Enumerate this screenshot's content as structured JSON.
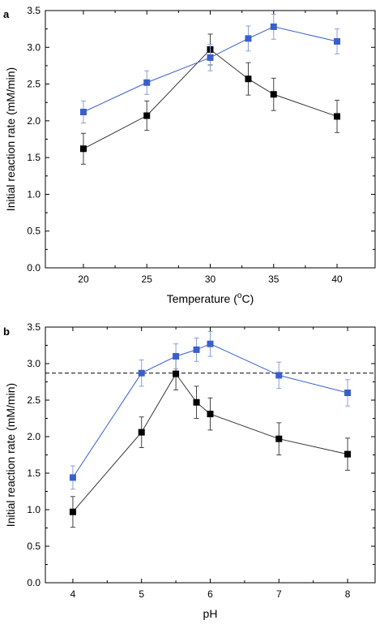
{
  "colors": {
    "black_series": "#000000",
    "blue_series": "#3a5fcd",
    "error_bar_blue": "#8a9fd8",
    "axis": "#000000"
  },
  "chart_data": [
    {
      "panel": "a",
      "type": "line",
      "xlabel": "Temperature (ºC)",
      "xlabel_main": "Temperature (",
      "xlabel_sup": "o",
      "xlabel_tail": "C)",
      "ylabel": "Initial reaction rate (mM/min)",
      "xlim": [
        17,
        43
      ],
      "ylim": [
        0,
        3.5
      ],
      "xticks": [
        20,
        25,
        30,
        35,
        40
      ],
      "xtick_labels": [
        "20",
        "25",
        "30",
        "35",
        "40"
      ],
      "yticks": [
        0,
        0.5,
        1.0,
        1.5,
        2.0,
        2.5,
        3.0,
        3.5
      ],
      "ytick_labels": [
        "0.0",
        "0.5",
        "1.0",
        "1.5",
        "2.0",
        "2.5",
        "3.0",
        "3.5"
      ],
      "series": [
        {
          "color": "#000000",
          "x": [
            20,
            25,
            30,
            33,
            35,
            40
          ],
          "y": [
            1.62,
            2.07,
            2.97,
            2.57,
            2.36,
            2.06
          ],
          "err": [
            0.21,
            0.2,
            0.21,
            0.22,
            0.22,
            0.22
          ]
        },
        {
          "color": "#3a5fcd",
          "x": [
            20,
            25,
            30,
            33,
            35,
            40
          ],
          "y": [
            2.12,
            2.52,
            2.86,
            3.12,
            3.28,
            3.08
          ],
          "err": [
            0.15,
            0.16,
            0.18,
            0.17,
            0.17,
            0.17
          ]
        }
      ],
      "hline": null
    },
    {
      "panel": "b",
      "type": "line",
      "xlabel": "pH",
      "xlabel_main": "pH",
      "xlabel_sup": "",
      "xlabel_tail": "",
      "ylabel": "Initial reaction rate (mM/min)",
      "xlim": [
        3.6,
        8.4
      ],
      "ylim": [
        0,
        3.5
      ],
      "xticks": [
        4,
        5,
        6,
        7,
        8
      ],
      "xtick_labels": [
        "4",
        "5",
        "6",
        "7",
        "8"
      ],
      "yticks": [
        0,
        0.5,
        1.0,
        1.5,
        2.0,
        2.5,
        3.0,
        3.5
      ],
      "ytick_labels": [
        "0.0",
        "0.5",
        "1.0",
        "1.5",
        "2.0",
        "2.5",
        "3.0",
        "3.5"
      ],
      "series": [
        {
          "color": "#000000",
          "x": [
            4,
            5,
            5.5,
            5.8,
            6,
            7,
            8
          ],
          "y": [
            0.97,
            2.06,
            2.86,
            2.47,
            2.31,
            1.97,
            1.76
          ],
          "err": [
            0.21,
            0.21,
            0.22,
            0.22,
            0.22,
            0.22,
            0.22
          ]
        },
        {
          "color": "#3a5fcd",
          "x": [
            4,
            5,
            5.5,
            5.8,
            6,
            7,
            8
          ],
          "y": [
            1.44,
            2.87,
            3.1,
            3.19,
            3.27,
            2.84,
            2.6
          ],
          "err": [
            0.16,
            0.18,
            0.17,
            0.16,
            0.17,
            0.18,
            0.18
          ]
        }
      ],
      "hline": 2.87
    }
  ]
}
